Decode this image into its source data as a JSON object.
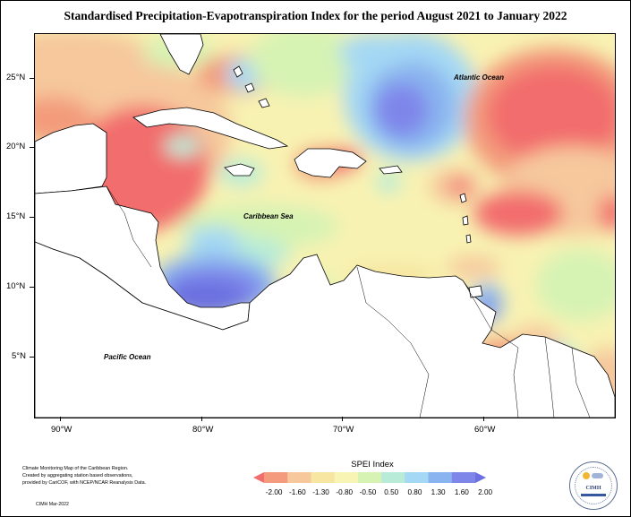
{
  "title": "Standardised Precipitation-Evapotranspiration Index for the period August 2021 to January 2022",
  "map": {
    "lon_range": [
      -92,
      -51
    ],
    "lat_range": [
      1.5,
      28.5
    ],
    "x_ticks": [
      "90°W",
      "80°W",
      "70°W",
      "60°W"
    ],
    "y_ticks": [
      "25°N",
      "20°N",
      "15°N",
      "10°N",
      "5°N"
    ],
    "ocean_labels": {
      "atlantic": "Atlantic Ocean",
      "caribbean": "Caribbean Sea",
      "pacific": "Pacific Ocean"
    }
  },
  "legend": {
    "title": "SPEI Index",
    "labels": [
      "-2.00",
      "-1.60",
      "-1.30",
      "-0.80",
      "-0.50",
      "0.50",
      "0.80",
      "1.30",
      "1.60",
      "2.00"
    ],
    "colors": [
      "#f26d6d",
      "#f39b7c",
      "#f6c89c",
      "#f7e6a2",
      "#f8f4b4",
      "#d6f3b4",
      "#b8ecd8",
      "#a4d8f4",
      "#8ab4ef",
      "#7f86ea",
      "#6b6fe0"
    ]
  },
  "credits": {
    "lines": [
      "Climate Monitoring Map of the Caribbean Region.",
      "Created by aggregating station based observations,",
      "provided by CariCOF, with NCEP/NCAR Reanalysis Data."
    ],
    "date": "CIMH Mar-2022"
  },
  "logo": {
    "text": "CIMH"
  }
}
